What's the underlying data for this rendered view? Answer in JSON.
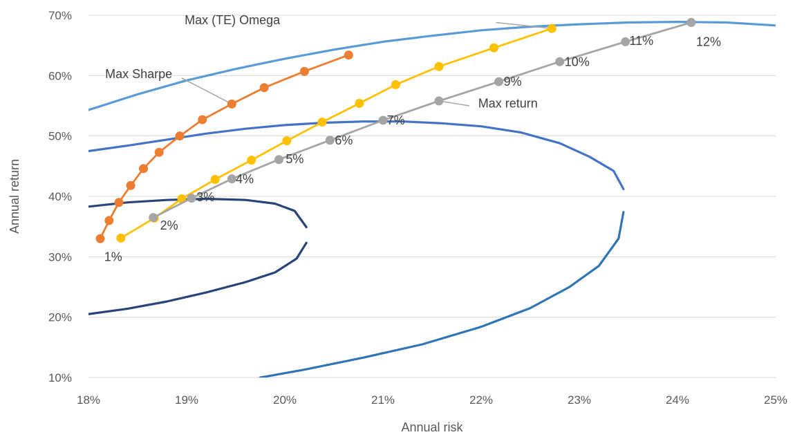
{
  "chart_data": {
    "type": "scatter",
    "xlabel": "Annual risk",
    "ylabel": "Annual return",
    "xlim": [
      0.18,
      0.25
    ],
    "ylim": [
      0.1,
      0.7
    ],
    "x_ticks": [
      0.18,
      0.19,
      0.2,
      0.21,
      0.22,
      0.23,
      0.24,
      0.25
    ],
    "y_ticks": [
      0.1,
      0.2,
      0.3,
      0.4,
      0.5,
      0.6,
      0.7
    ],
    "x_tick_labels": [
      "18%",
      "19%",
      "20%",
      "21%",
      "22%",
      "23%",
      "24%",
      "25%"
    ],
    "y_tick_labels": [
      "10%",
      "20%",
      "30%",
      "40%",
      "50%",
      "60%",
      "70%"
    ],
    "grid": "horizontal",
    "series": [
      {
        "color": "#ED7D31",
        "points": [
          [
            0.1812,
            0.33
          ],
          [
            0.1821,
            0.36
          ],
          [
            0.1831,
            0.39
          ],
          [
            0.1843,
            0.418
          ],
          [
            0.1856,
            0.446
          ],
          [
            0.1872,
            0.473
          ],
          [
            0.1893,
            0.5
          ],
          [
            0.1916,
            0.527
          ],
          [
            0.1946,
            0.553
          ],
          [
            0.1979,
            0.58
          ],
          [
            0.202,
            0.607
          ],
          [
            0.2065,
            0.634
          ]
        ]
      },
      {
        "color": "#FFC000",
        "points": [
          [
            0.1833,
            0.331
          ],
          [
            0.1867,
            0.364
          ],
          [
            0.1895,
            0.396
          ],
          [
            0.1929,
            0.428
          ],
          [
            0.1966,
            0.46
          ],
          [
            0.2002,
            0.492
          ],
          [
            0.2038,
            0.523
          ],
          [
            0.2076,
            0.554
          ],
          [
            0.2113,
            0.585
          ],
          [
            0.2157,
            0.615
          ],
          [
            0.2213,
            0.646
          ],
          [
            0.2272,
            0.678
          ]
        ]
      },
      {
        "color": "#A5A5A5",
        "points": [
          [
            0.1866,
            0.365
          ],
          [
            0.1905,
            0.397
          ],
          [
            0.1946,
            0.429
          ],
          [
            0.1994,
            0.461
          ],
          [
            0.2046,
            0.493
          ],
          [
            0.21,
            0.526
          ],
          [
            0.2157,
            0.558
          ],
          [
            0.2218,
            0.59
          ],
          [
            0.228,
            0.623
          ],
          [
            0.2347,
            0.656
          ],
          [
            0.2414,
            0.688
          ]
        ]
      }
    ],
    "point_labels": [
      {
        "text": "1%",
        "x": 0.1816,
        "y": 0.293
      },
      {
        "text": "2%",
        "x": 0.1873,
        "y": 0.345
      },
      {
        "text": "3%",
        "x": 0.191,
        "y": 0.392
      },
      {
        "text": "4%",
        "x": 0.195,
        "y": 0.422
      },
      {
        "text": "5%",
        "x": 0.2001,
        "y": 0.455
      },
      {
        "text": "6%",
        "x": 0.2051,
        "y": 0.486
      },
      {
        "text": "7%",
        "x": 0.2104,
        "y": 0.519
      },
      {
        "text": "9%",
        "x": 0.2223,
        "y": 0.583
      },
      {
        "text": "10%",
        "x": 0.2285,
        "y": 0.616
      },
      {
        "text": "11%",
        "x": 0.2351,
        "y": 0.651
      },
      {
        "text": "12%",
        "x": 0.2419,
        "y": 0.649
      }
    ],
    "callouts": [
      {
        "text": "Max (TE) Omega",
        "x": 0.1898,
        "y": 0.685,
        "line": [
          [
            0.2215,
            0.688
          ],
          [
            0.2272,
            0.678
          ]
        ]
      },
      {
        "text": "Max Sharpe",
        "x": 0.1817,
        "y": 0.596,
        "line": [
          [
            0.1895,
            0.596
          ],
          [
            0.1946,
            0.553
          ]
        ]
      },
      {
        "text": "Max return",
        "x": 0.2197,
        "y": 0.547,
        "line": [
          [
            0.2188,
            0.55
          ],
          [
            0.2157,
            0.558
          ]
        ]
      }
    ],
    "curves": [
      {
        "color": "#5B9BD5",
        "points": [
          [
            0.18,
            0.543
          ],
          [
            0.185,
            0.569
          ],
          [
            0.19,
            0.592
          ],
          [
            0.195,
            0.611
          ],
          [
            0.2,
            0.628
          ],
          [
            0.205,
            0.643
          ],
          [
            0.21,
            0.656
          ],
          [
            0.215,
            0.666
          ],
          [
            0.22,
            0.675
          ],
          [
            0.225,
            0.681
          ],
          [
            0.23,
            0.685
          ],
          [
            0.235,
            0.688
          ],
          [
            0.24,
            0.689
          ],
          [
            0.245,
            0.688
          ],
          [
            0.25,
            0.683
          ]
        ]
      },
      {
        "color": "#4472C4",
        "points": [
          [
            0.18,
            0.475
          ],
          [
            0.184,
            0.484
          ],
          [
            0.188,
            0.494
          ],
          [
            0.192,
            0.504
          ],
          [
            0.196,
            0.512
          ],
          [
            0.2,
            0.518
          ],
          [
            0.204,
            0.522
          ],
          [
            0.208,
            0.524
          ],
          [
            0.212,
            0.524
          ],
          [
            0.216,
            0.521
          ],
          [
            0.22,
            0.516
          ],
          [
            0.224,
            0.506
          ],
          [
            0.228,
            0.488
          ],
          [
            0.231,
            0.466
          ],
          [
            0.2335,
            0.442
          ],
          [
            0.2345,
            0.412
          ]
        ]
      },
      {
        "color": "#2E75B6",
        "points": [
          [
            0.2345,
            0.374
          ],
          [
            0.234,
            0.33
          ],
          [
            0.232,
            0.285
          ],
          [
            0.229,
            0.25
          ],
          [
            0.225,
            0.215
          ],
          [
            0.22,
            0.184
          ],
          [
            0.214,
            0.155
          ],
          [
            0.208,
            0.133
          ],
          [
            0.202,
            0.113
          ],
          [
            0.1975,
            0.1
          ]
        ]
      },
      {
        "color": "#264478",
        "points": [
          [
            0.18,
            0.383
          ],
          [
            0.184,
            0.39
          ],
          [
            0.188,
            0.394
          ],
          [
            0.192,
            0.396
          ],
          [
            0.196,
            0.394
          ],
          [
            0.199,
            0.388
          ],
          [
            0.201,
            0.376
          ],
          [
            0.2022,
            0.349
          ]
        ]
      },
      {
        "color": "#264478",
        "points": [
          [
            0.2022,
            0.323
          ],
          [
            0.2012,
            0.297
          ],
          [
            0.199,
            0.274
          ],
          [
            0.196,
            0.258
          ],
          [
            0.192,
            0.241
          ],
          [
            0.188,
            0.226
          ],
          [
            0.184,
            0.214
          ],
          [
            0.18,
            0.205
          ]
        ]
      }
    ]
  }
}
